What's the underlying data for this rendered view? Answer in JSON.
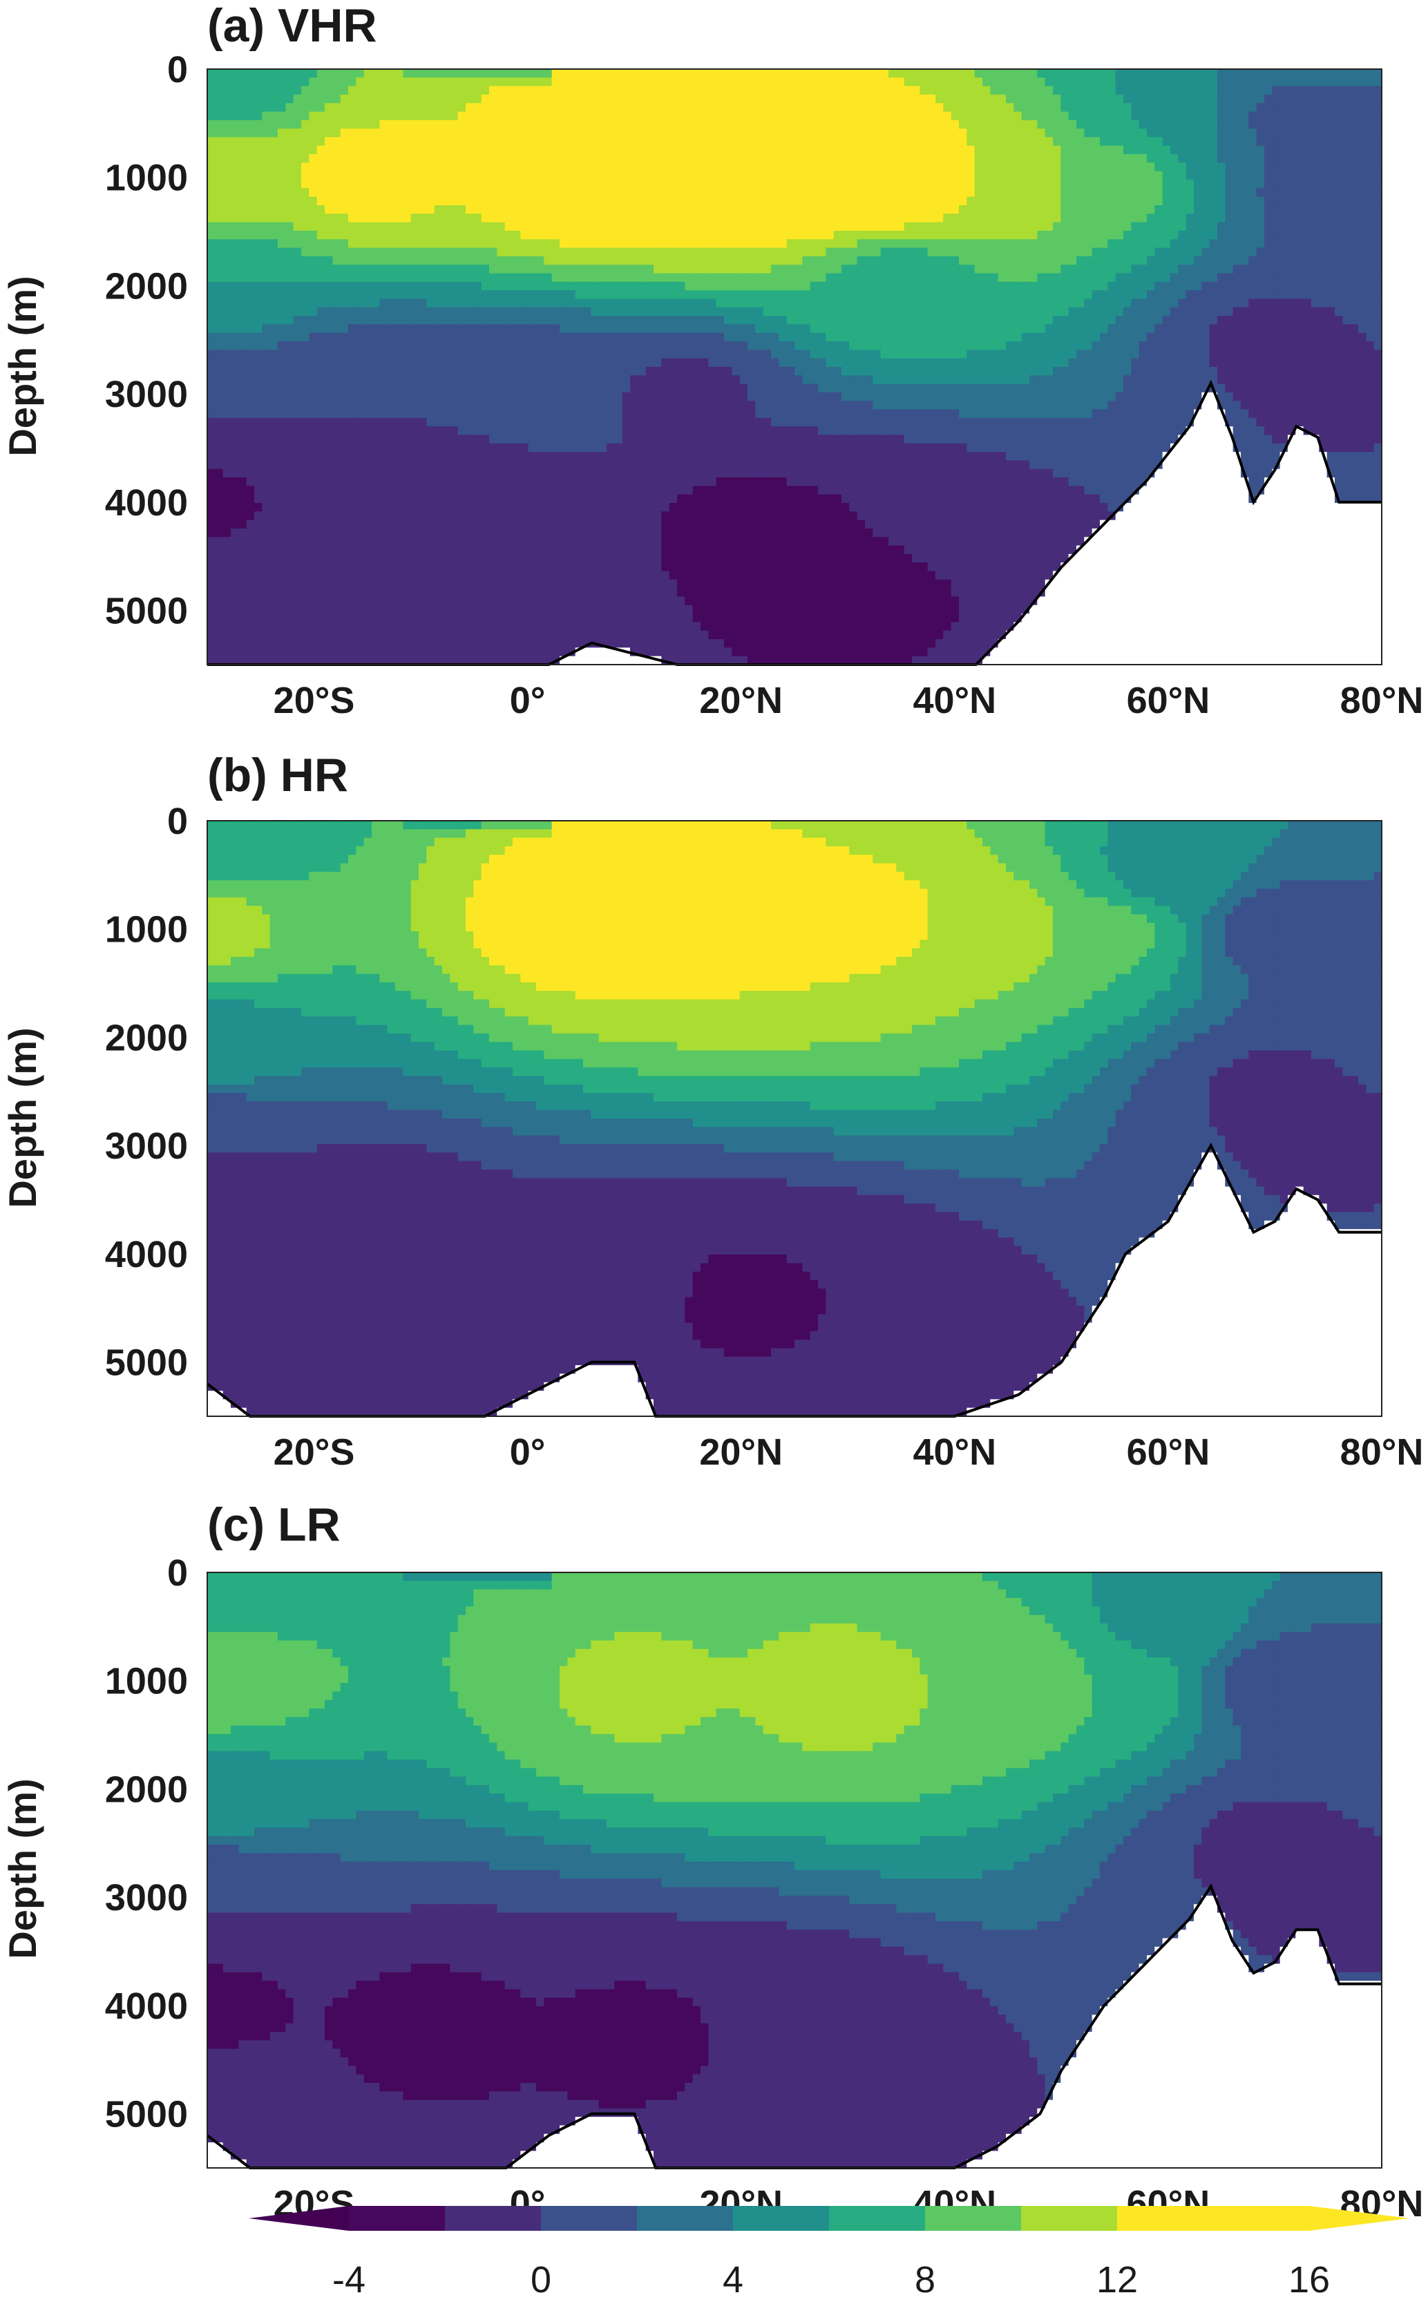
{
  "chart_data": {
    "type": "heatmap",
    "shared": {
      "x_ticks": [
        -20,
        0,
        20,
        40,
        60,
        80
      ],
      "x_tick_labels": [
        "20°S",
        "0°",
        "20°N",
        "40°N",
        "60°N",
        "80°N"
      ],
      "x_range": [
        -30,
        80
      ],
      "y_ticks": [
        0,
        1000,
        2000,
        3000,
        4000,
        5000
      ],
      "y_tick_labels": [
        "0",
        "1000",
        "2000",
        "3000",
        "4000",
        "5000"
      ],
      "y_range": [
        0,
        5500
      ],
      "y_inverted": true,
      "ylabel": "Depth (m)",
      "colorbar": {
        "levels": [
          -4,
          -2,
          0,
          2,
          4,
          6,
          8,
          10,
          12,
          14,
          16
        ],
        "tick_values": [
          -4,
          0,
          4,
          8,
          12,
          16
        ],
        "tick_labels": [
          "-4",
          "0",
          "4",
          "8",
          "12",
          "16"
        ],
        "extend": "both",
        "colors": [
          "#46085c",
          "#472c7a",
          "#3b518b",
          "#2c718e",
          "#21908d",
          "#27ad81",
          "#5cc863",
          "#aadc32",
          "#fde725"
        ]
      }
    },
    "panels": [
      {
        "title": "(a) VHR",
        "bathymetry_depth_by_lat": [
          [
            -30,
            5500
          ],
          [
            -4,
            5500
          ],
          [
            2,
            5500
          ],
          [
            6,
            5300
          ],
          [
            10,
            5400
          ],
          [
            14,
            5500
          ],
          [
            42,
            5500
          ],
          [
            46,
            5100
          ],
          [
            50,
            4600
          ],
          [
            54,
            4200
          ],
          [
            58,
            3800
          ],
          [
            62,
            3300
          ],
          [
            64,
            2900
          ],
          [
            66,
            3400
          ],
          [
            68,
            4000
          ],
          [
            70,
            3700
          ],
          [
            72,
            3300
          ],
          [
            74,
            3400
          ],
          [
            76,
            4000
          ],
          [
            80,
            4000
          ]
        ],
        "field_nodes": [
          [
            -30,
            100,
            6.0
          ],
          [
            -30,
            1000,
            11.5
          ],
          [
            -30,
            2000,
            6.0
          ],
          [
            -30,
            3000,
            0.0
          ],
          [
            -30,
            4000,
            -2.2
          ],
          [
            -30,
            5000,
            -0.5
          ],
          [
            -15,
            1000,
            12.8
          ],
          [
            -15,
            3000,
            0.0
          ],
          [
            -15,
            4000,
            -1.8
          ],
          [
            -5,
            4000,
            -0.6
          ],
          [
            2,
            300,
            12.0
          ],
          [
            5,
            1000,
            14.5
          ],
          [
            15,
            1000,
            14.2
          ],
          [
            25,
            1000,
            14.0
          ],
          [
            33,
            1000,
            15.5
          ],
          [
            0,
            3000,
            0.2
          ],
          [
            15,
            3000,
            -0.3
          ],
          [
            20,
            4200,
            -2.5
          ],
          [
            28,
            4600,
            -3.2
          ],
          [
            33,
            4500,
            -2.6
          ],
          [
            36,
            4300,
            -1.2
          ],
          [
            35,
            2000,
            7.0
          ],
          [
            45,
            1000,
            12.0
          ],
          [
            55,
            1000,
            9.0
          ],
          [
            60,
            500,
            6.0
          ],
          [
            65,
            500,
            4.0
          ],
          [
            70,
            500,
            1.0
          ],
          [
            75,
            1000,
            0.6
          ],
          [
            80,
            1500,
            0.5
          ],
          [
            70,
            2500,
            -0.4
          ],
          [
            75,
            3000,
            -0.2
          ]
        ]
      },
      {
        "title": "(b) HR",
        "bathymetry_depth_by_lat": [
          [
            -30,
            5200
          ],
          [
            -26,
            5500
          ],
          [
            -4,
            5500
          ],
          [
            2,
            5200
          ],
          [
            6,
            5000
          ],
          [
            10,
            5000
          ],
          [
            12,
            5500
          ],
          [
            40,
            5500
          ],
          [
            46,
            5300
          ],
          [
            50,
            5000
          ],
          [
            54,
            4400
          ],
          [
            56,
            4000
          ],
          [
            60,
            3700
          ],
          [
            64,
            3000
          ],
          [
            66,
            3400
          ],
          [
            68,
            3800
          ],
          [
            70,
            3700
          ],
          [
            72,
            3400
          ],
          [
            74,
            3500
          ],
          [
            76,
            3800
          ],
          [
            80,
            3800
          ]
        ],
        "field_nodes": [
          [
            -30,
            100,
            6.0
          ],
          [
            -30,
            1000,
            10.5
          ],
          [
            -30,
            2000,
            5.5
          ],
          [
            -30,
            3000,
            0.0
          ],
          [
            -30,
            3800,
            -2.0
          ],
          [
            -30,
            4800,
            -0.4
          ],
          [
            -15,
            3800,
            -1.8
          ],
          [
            5,
            900,
            13.2
          ],
          [
            15,
            900,
            12.8
          ],
          [
            25,
            900,
            12.6
          ],
          [
            33,
            900,
            12.4
          ],
          [
            10,
            4300,
            -1.8
          ],
          [
            20,
            4400,
            -2.2
          ],
          [
            30,
            4500,
            -2.0
          ],
          [
            45,
            1000,
            11.0
          ],
          [
            55,
            1000,
            8.5
          ],
          [
            60,
            500,
            5.0
          ],
          [
            70,
            1000,
            1.0
          ],
          [
            80,
            1500,
            0.5
          ],
          [
            70,
            2500,
            -0.3
          ],
          [
            75,
            3000,
            -0.2
          ]
        ]
      },
      {
        "title": "(c) LR",
        "bathymetry_depth_by_lat": [
          [
            -30,
            5200
          ],
          [
            -26,
            5500
          ],
          [
            -2,
            5500
          ],
          [
            2,
            5200
          ],
          [
            6,
            5000
          ],
          [
            10,
            5000
          ],
          [
            12,
            5500
          ],
          [
            40,
            5500
          ],
          [
            44,
            5300
          ],
          [
            48,
            5000
          ],
          [
            50,
            4600
          ],
          [
            54,
            4000
          ],
          [
            58,
            3600
          ],
          [
            62,
            3200
          ],
          [
            64,
            2900
          ],
          [
            66,
            3400
          ],
          [
            68,
            3700
          ],
          [
            70,
            3600
          ],
          [
            72,
            3300
          ],
          [
            74,
            3300
          ],
          [
            76,
            3800
          ],
          [
            80,
            3800
          ]
        ],
        "field_nodes": [
          [
            -30,
            100,
            6.0
          ],
          [
            -30,
            1000,
            9.8
          ],
          [
            -30,
            2000,
            5.5
          ],
          [
            -30,
            3000,
            0.0
          ],
          [
            -30,
            4000,
            -2.4
          ],
          [
            -30,
            5000,
            -0.4
          ],
          [
            -10,
            4200,
            -2.4
          ],
          [
            10,
            4300,
            -2.2
          ],
          [
            25,
            4300,
            -1.8
          ],
          [
            10,
            1100,
            10.2
          ],
          [
            30,
            1100,
            10.5
          ],
          [
            45,
            1000,
            10.0
          ],
          [
            55,
            1000,
            8.0
          ],
          [
            60,
            500,
            5.0
          ],
          [
            70,
            1000,
            1.0
          ],
          [
            80,
            1500,
            0.6
          ],
          [
            70,
            2500,
            -0.4
          ],
          [
            75,
            3000,
            -0.2
          ]
        ]
      }
    ]
  }
}
